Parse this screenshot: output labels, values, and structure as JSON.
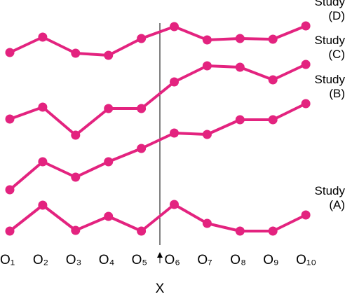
{
  "chart_data": {
    "type": "line",
    "categories": [
      "O₁",
      "O₂",
      "O₃",
      "O₄",
      "O₅",
      "O₆",
      "O₇",
      "O₈",
      "O₉",
      "O₁₀"
    ],
    "series": [
      {
        "name": "Study (D)",
        "color": "#e3237f",
        "values": [
          285,
          307,
          284,
          281,
          305,
          322,
          303,
          305,
          304,
          323
        ]
      },
      {
        "name": "Study (C)",
        "color": "#e3237f",
        "values": [
          190,
          207,
          167,
          205,
          205,
          243,
          266,
          264,
          246,
          268
        ]
      },
      {
        "name": "Study (B)",
        "color": "#e3237f",
        "values": [
          89,
          129,
          107,
          129,
          148,
          170,
          168,
          189,
          189,
          212
        ]
      },
      {
        "name": "Study (A)",
        "color": "#e3237f",
        "values": [
          30,
          67,
          31,
          51,
          30,
          68,
          41,
          30,
          30,
          53
        ]
      }
    ],
    "ylim": [
      0,
      360
    ],
    "annotation": "X"
  }
}
